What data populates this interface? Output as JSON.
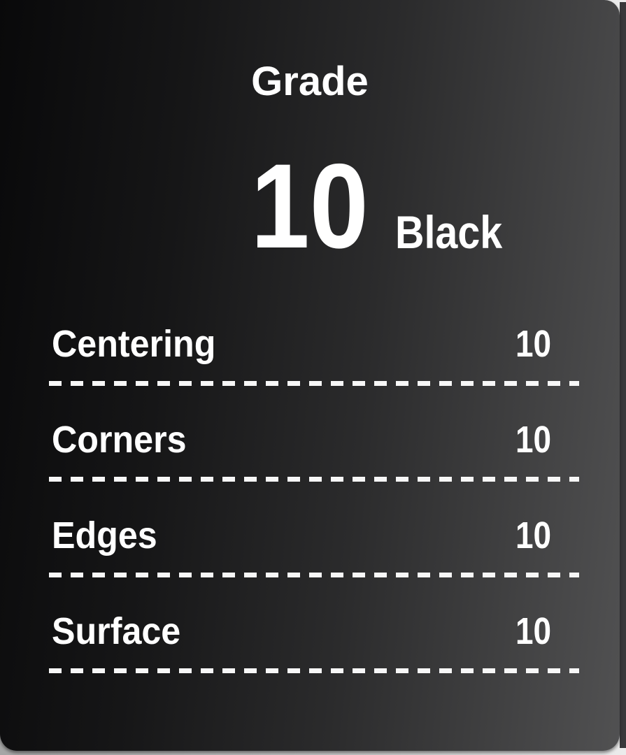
{
  "card": {
    "grade_title": "Grade",
    "grade_value": "10",
    "grade_variant": "Black",
    "subgrades": [
      {
        "label": "Centering",
        "value": "10"
      },
      {
        "label": "Corners",
        "value": "10"
      },
      {
        "label": "Edges",
        "value": "10"
      },
      {
        "label": "Surface",
        "value": "10"
      }
    ],
    "colors": {
      "text": "#ffffff",
      "dash": "#f7f7f7",
      "card_gradient_start": "#09090a",
      "card_gradient_end": "#515152",
      "right_edge_strip": "#39393b",
      "page_background": "#c9c9c9"
    }
  }
}
